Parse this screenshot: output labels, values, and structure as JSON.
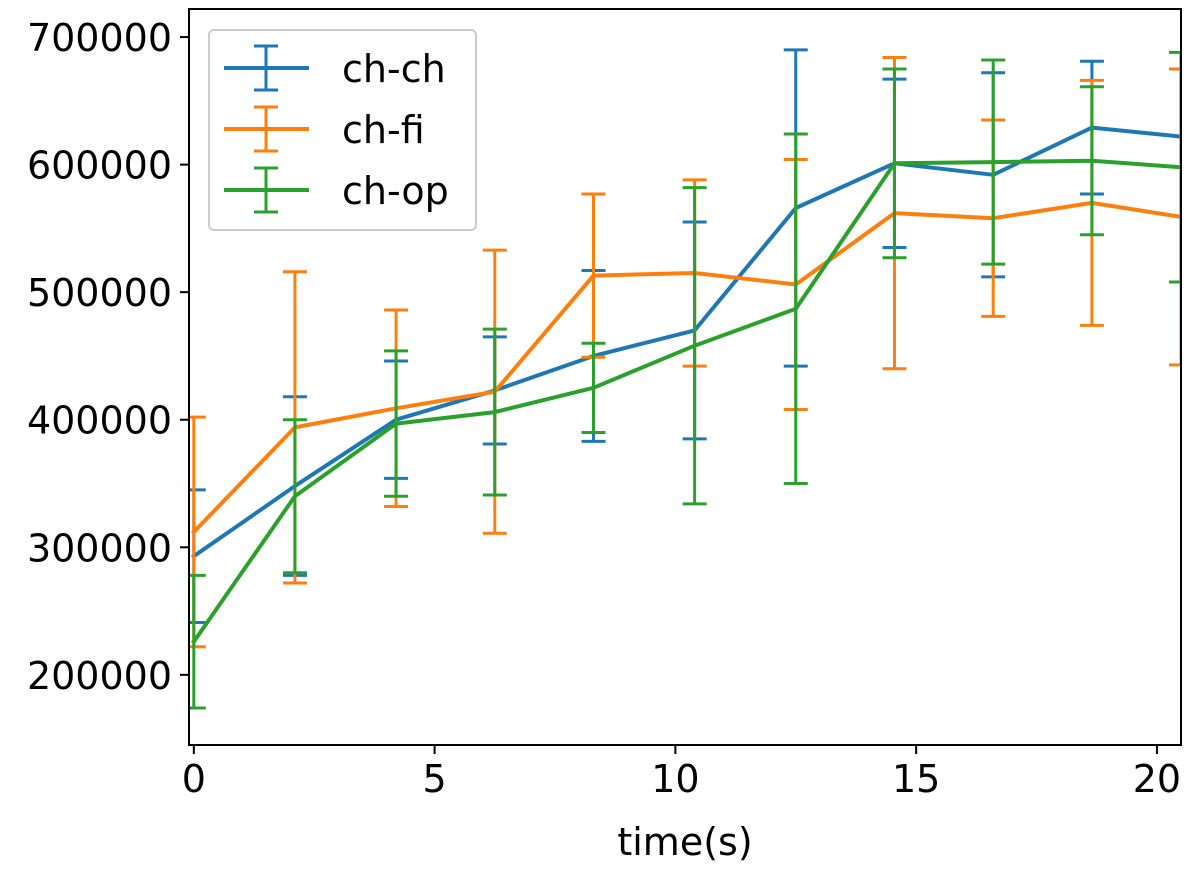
{
  "chart_data": {
    "type": "line",
    "title": "",
    "xlabel": "time(s)",
    "ylabel": "",
    "xlim": [
      -0.1,
      20.5
    ],
    "ylim": [
      145000,
      722000
    ],
    "x_ticks": [
      0,
      5,
      10,
      15,
      20
    ],
    "x_tick_labels": [
      "0",
      "5",
      "10",
      "15",
      "20"
    ],
    "y_ticks": [
      200000,
      300000,
      400000,
      500000,
      600000,
      700000
    ],
    "y_tick_labels": [
      "200000",
      "300000",
      "400000",
      "500000",
      "600000",
      "700000"
    ],
    "grid": false,
    "legend": {
      "placement": "top-left"
    },
    "series": [
      {
        "name": "ch-ch",
        "color": "#1f77b4",
        "x": [
          0.0,
          2.1,
          4.2,
          6.25,
          8.3,
          10.4,
          12.5,
          14.55,
          16.6,
          18.65,
          20.5
        ],
        "y": [
          293000,
          348000,
          400000,
          423000,
          450000,
          470000,
          566000,
          601000,
          592000,
          629000,
          622000
        ],
        "err": [
          52000,
          70000,
          46000,
          42000,
          67000,
          85000,
          124000,
          66000,
          80000,
          52000,
          0
        ]
      },
      {
        "name": "ch-fi",
        "color": "#ff7f0e",
        "x": [
          0.0,
          2.1,
          4.2,
          6.25,
          8.3,
          10.4,
          12.5,
          14.55,
          16.6,
          18.65,
          20.5
        ],
        "y": [
          312000,
          394000,
          409000,
          422000,
          513000,
          515000,
          506000,
          562000,
          558000,
          570000,
          559000
        ],
        "err": [
          90000,
          122000,
          77000,
          111000,
          64000,
          73000,
          98000,
          122000,
          77000,
          96000,
          116000
        ]
      },
      {
        "name": "ch-op",
        "color": "#2ca02c",
        "x": [
          0.0,
          2.1,
          4.2,
          6.25,
          8.3,
          10.4,
          12.5,
          14.55,
          16.6,
          18.65,
          20.5
        ],
        "y": [
          226000,
          340000,
          397000,
          406000,
          425000,
          458000,
          487000,
          601000,
          602000,
          603000,
          598000
        ],
        "err": [
          52000,
          60000,
          57000,
          65000,
          35000,
          124000,
          137000,
          74000,
          80000,
          58000,
          90000
        ]
      }
    ]
  }
}
